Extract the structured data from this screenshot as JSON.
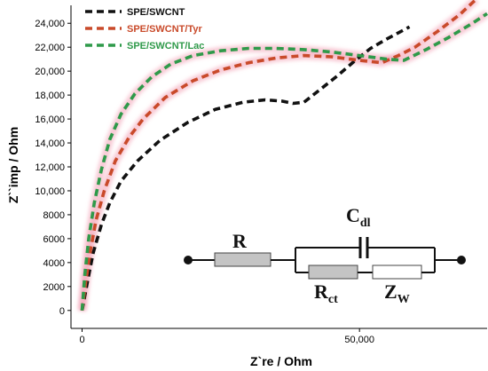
{
  "chart_data": {
    "type": "line",
    "title": "",
    "xlabel": "Z`re / Ohm",
    "ylabel": "Z``imp / Ohm",
    "xlim": [
      -2000,
      73000
    ],
    "ylim": [
      -1500,
      25500
    ],
    "x_ticks": [
      0,
      50000
    ],
    "x_tick_labels": [
      "0",
      "50,000"
    ],
    "y_ticks": [
      0,
      2000,
      4000,
      6000,
      8000,
      10000,
      12000,
      14000,
      16000,
      18000,
      20000,
      22000,
      24000
    ],
    "y_tick_labels": [
      "0",
      "2000",
      "4000",
      "6000",
      "8000",
      "10,000",
      "12,000",
      "14,000",
      "16,000",
      "18,000",
      "20,000",
      "22,000",
      "24,000"
    ],
    "grid": false,
    "legend_position": "top-left",
    "series": [
      {
        "name": "SPE/SWCNT",
        "color": "#111111",
        "x": [
          0,
          1000,
          2000,
          3500,
          5000,
          7000,
          10000,
          14000,
          19000,
          24000,
          29000,
          33000,
          36000,
          38000,
          40000,
          43000,
          46000,
          49000,
          52000,
          55000,
          59000
        ],
        "y": [
          0,
          2500,
          4800,
          7200,
          9000,
          10800,
          12500,
          14200,
          15700,
          16800,
          17400,
          17600,
          17500,
          17300,
          17400,
          18500,
          19600,
          20800,
          21900,
          22700,
          23700
        ]
      },
      {
        "name": "SPE/SWCNT/Tyr",
        "color": "#c94a2a",
        "x": [
          0,
          700,
          1500,
          2500,
          4000,
          6000,
          8500,
          11000,
          15000,
          20000,
          25000,
          30000,
          35000,
          40000,
          45000,
          50000,
          54000,
          57000,
          60000,
          64000,
          68000,
          71000
        ],
        "y": [
          0,
          2500,
          5000,
          7500,
          10000,
          12500,
          14500,
          16000,
          17800,
          19200,
          20100,
          20700,
          21100,
          21300,
          21200,
          20900,
          20700,
          21300,
          22000,
          23300,
          24700,
          26000
        ]
      },
      {
        "name": "SPE/SWCNT/Lac",
        "color": "#2f9a4a",
        "x": [
          0,
          500,
          1200,
          2200,
          3500,
          5000,
          7000,
          9500,
          12500,
          16000,
          20000,
          25000,
          30000,
          35000,
          40000,
          45000,
          50000,
          55000,
          58000,
          62000,
          66000,
          70000,
          73000
        ],
        "y": [
          0,
          3000,
          6000,
          9000,
          11800,
          14300,
          16400,
          18100,
          19500,
          20600,
          21300,
          21700,
          21900,
          21900,
          21800,
          21600,
          21300,
          21000,
          20900,
          21800,
          22800,
          23900,
          24800
        ]
      }
    ]
  },
  "inset": {
    "labels": {
      "r": "R",
      "cdl_main": "C",
      "cdl_sub": "dl",
      "rct_main": "R",
      "rct_sub": "ct",
      "zw_main": "Z",
      "zw_sub": "W"
    }
  }
}
